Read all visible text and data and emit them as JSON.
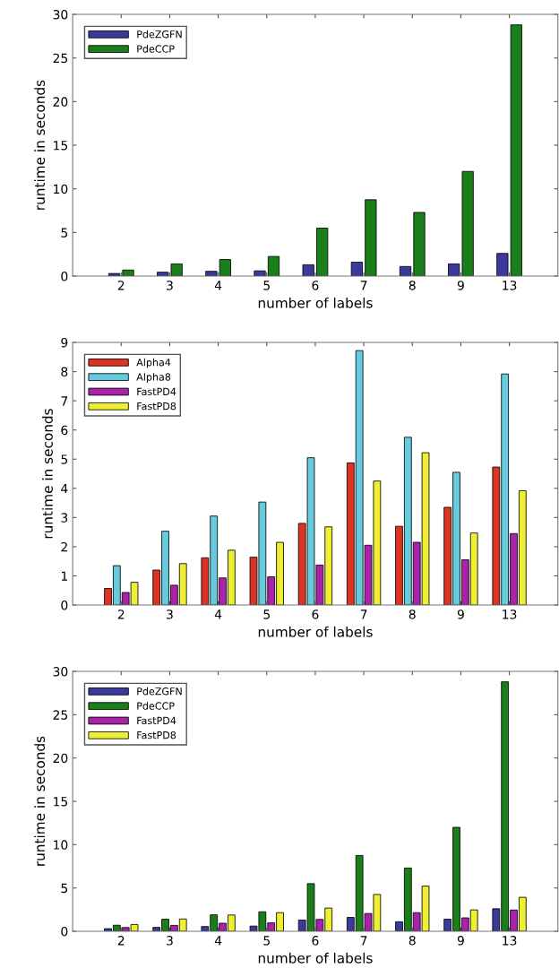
{
  "chart_data": [
    {
      "type": "bar",
      "xlabel": "number of labels",
      "ylabel": "runtime in seconds",
      "categories": [
        "2",
        "3",
        "4",
        "5",
        "6",
        "7",
        "8",
        "9",
        "13"
      ],
      "ylim": [
        0,
        30
      ],
      "yticks": [
        0,
        5,
        10,
        15,
        20,
        25,
        30
      ],
      "legend": "top left",
      "series": [
        {
          "name": "PdeZGFN",
          "color": "#3a3a9a",
          "values": [
            0.3,
            0.45,
            0.55,
            0.6,
            1.3,
            1.6,
            1.1,
            1.4,
            2.6
          ]
        },
        {
          "name": "PdeCCP",
          "color": "#1a7f1a",
          "values": [
            0.7,
            1.4,
            1.9,
            2.25,
            5.5,
            8.75,
            7.3,
            12,
            28.8
          ]
        }
      ]
    },
    {
      "type": "bar",
      "xlabel": "number of labels",
      "ylabel": "runtime in seconds",
      "categories": [
        "2",
        "3",
        "4",
        "5",
        "6",
        "7",
        "8",
        "9",
        "13"
      ],
      "ylim": [
        0,
        9
      ],
      "yticks": [
        0,
        1,
        2,
        3,
        4,
        5,
        6,
        7,
        8,
        9
      ],
      "legend": "top left",
      "series": [
        {
          "name": "Alpha4",
          "color": "#dd3322",
          "values": [
            0.57,
            1.2,
            1.62,
            1.64,
            2.8,
            4.87,
            2.7,
            3.35,
            4.73
          ]
        },
        {
          "name": "Alpha8",
          "color": "#66ccdd",
          "values": [
            1.35,
            2.53,
            3.05,
            3.53,
            5.05,
            8.72,
            5.75,
            4.55,
            7.92
          ]
        },
        {
          "name": "FastPD4",
          "color": "#aa22aa",
          "values": [
            0.43,
            0.68,
            0.93,
            0.97,
            1.37,
            2.05,
            2.15,
            1.55,
            2.45
          ]
        },
        {
          "name": "FastPD8",
          "color": "#eeee33",
          "values": [
            0.78,
            1.42,
            1.88,
            2.15,
            2.68,
            4.25,
            5.22,
            2.47,
            3.92
          ]
        }
      ]
    },
    {
      "type": "bar",
      "xlabel": "number of labels",
      "ylabel": "runtime in seconds",
      "categories": [
        "2",
        "3",
        "4",
        "5",
        "6",
        "7",
        "8",
        "9",
        "13"
      ],
      "ylim": [
        0,
        30
      ],
      "yticks": [
        0,
        5,
        10,
        15,
        20,
        25,
        30
      ],
      "legend": "top left",
      "series": [
        {
          "name": "PdeZGFN",
          "color": "#3a3a9a",
          "values": [
            0.3,
            0.45,
            0.55,
            0.6,
            1.3,
            1.6,
            1.1,
            1.4,
            2.6
          ]
        },
        {
          "name": "PdeCCP",
          "color": "#1a7f1a",
          "values": [
            0.7,
            1.4,
            1.9,
            2.25,
            5.5,
            8.75,
            7.3,
            12,
            28.8
          ]
        },
        {
          "name": "FastPD4",
          "color": "#aa22aa",
          "values": [
            0.43,
            0.68,
            0.93,
            0.97,
            1.37,
            2.05,
            2.15,
            1.55,
            2.45
          ]
        },
        {
          "name": "FastPD8",
          "color": "#eeee33",
          "values": [
            0.78,
            1.42,
            1.88,
            2.15,
            2.68,
            4.25,
            5.22,
            2.47,
            3.92
          ]
        }
      ]
    }
  ]
}
